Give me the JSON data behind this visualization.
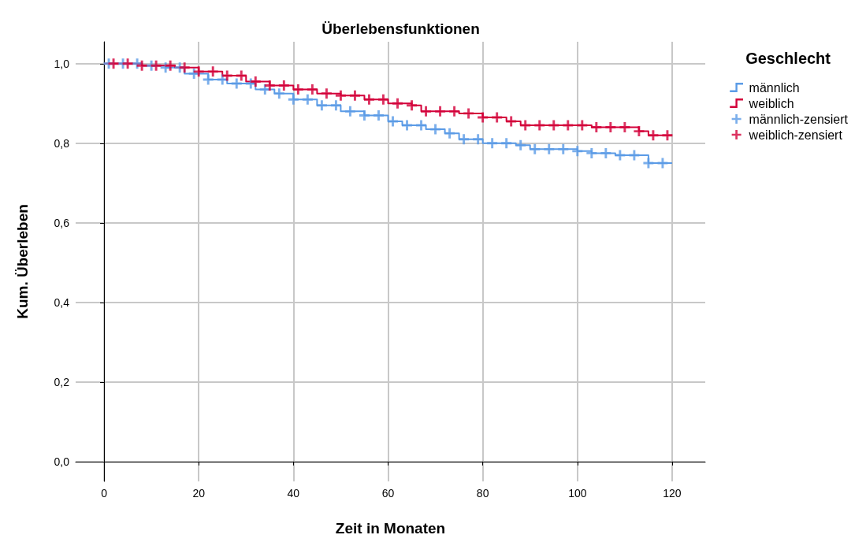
{
  "chart_data": {
    "type": "step",
    "title": "Überlebensfunktionen",
    "xlabel": "Zeit in Monaten",
    "ylabel": "Kum. Überleben",
    "legend_title": "Geschlecht",
    "legend": "top right",
    "grid": true,
    "xlim": [
      -6,
      127
    ],
    "xticks": [
      0,
      20,
      40,
      60,
      80,
      100,
      120
    ],
    "ylim": [
      -0.05,
      1.055
    ],
    "yticks": [
      {
        "value": 0,
        "label": "0,0"
      },
      {
        "value": 0.2,
        "label": "0,2"
      },
      {
        "value": 0.4,
        "label": "0,4"
      },
      {
        "value": 0.6,
        "label": "0,6"
      },
      {
        "value": 0.8,
        "label": "0,8"
      },
      {
        "value": 1,
        "label": "1,0"
      }
    ],
    "series": [
      {
        "name": "männlich",
        "color": "#5b9be6",
        "x": [
          0,
          8,
          13,
          17,
          22,
          26,
          32,
          36,
          40,
          45,
          50,
          55,
          60,
          63,
          68,
          72,
          75,
          80,
          87,
          90,
          100,
          103,
          108,
          115,
          120
        ],
        "values": [
          1.0,
          0.995,
          0.99,
          0.975,
          0.96,
          0.95,
          0.935,
          0.925,
          0.91,
          0.895,
          0.88,
          0.87,
          0.855,
          0.845,
          0.835,
          0.825,
          0.81,
          0.8,
          0.795,
          0.785,
          0.78,
          0.775,
          0.77,
          0.75,
          0.75
        ]
      },
      {
        "name": "weiblich",
        "color": "#d3003a",
        "x": [
          0,
          8,
          15,
          20,
          25,
          30,
          35,
          40,
          45,
          50,
          55,
          60,
          65,
          67,
          75,
          80,
          85,
          88,
          103,
          113,
          115,
          120
        ],
        "values": [
          1.0,
          0.995,
          0.99,
          0.98,
          0.97,
          0.955,
          0.945,
          0.935,
          0.925,
          0.92,
          0.91,
          0.9,
          0.895,
          0.88,
          0.875,
          0.865,
          0.855,
          0.845,
          0.84,
          0.83,
          0.82,
          0.82
        ]
      },
      {
        "name": "männlich-zensiert",
        "type": "scatter",
        "marker": "cross",
        "color": "#5b9be6",
        "x": [
          1,
          4,
          7,
          10,
          13,
          16,
          19,
          22,
          25,
          28,
          31,
          34,
          37,
          40,
          43,
          46,
          49,
          52,
          55,
          58,
          61,
          64,
          67,
          70,
          73,
          76,
          79,
          82,
          85,
          88,
          91,
          94,
          97,
          100,
          103,
          106,
          109,
          112,
          115,
          118
        ],
        "values": [
          1.0,
          1.0,
          1.0,
          0.995,
          0.99,
          0.99,
          0.975,
          0.96,
          0.96,
          0.95,
          0.95,
          0.935,
          0.925,
          0.91,
          0.91,
          0.895,
          0.895,
          0.88,
          0.87,
          0.87,
          0.855,
          0.845,
          0.845,
          0.835,
          0.825,
          0.81,
          0.81,
          0.8,
          0.8,
          0.795,
          0.785,
          0.785,
          0.785,
          0.78,
          0.775,
          0.775,
          0.77,
          0.77,
          0.75,
          0.75
        ]
      },
      {
        "name": "weiblich-zensiert",
        "type": "scatter",
        "marker": "cross",
        "color": "#d3003a",
        "x": [
          2,
          5,
          8,
          11,
          14,
          17,
          20,
          23,
          26,
          29,
          32,
          35,
          38,
          41,
          44,
          47,
          50,
          53,
          56,
          59,
          62,
          65,
          68,
          71,
          74,
          77,
          80,
          83,
          86,
          89,
          92,
          95,
          98,
          101,
          104,
          107,
          110,
          113,
          116,
          119
        ],
        "values": [
          1.0,
          1.0,
          0.995,
          0.995,
          0.995,
          0.99,
          0.98,
          0.98,
          0.97,
          0.97,
          0.955,
          0.945,
          0.945,
          0.935,
          0.935,
          0.925,
          0.92,
          0.92,
          0.91,
          0.91,
          0.9,
          0.895,
          0.88,
          0.88,
          0.88,
          0.875,
          0.865,
          0.865,
          0.855,
          0.845,
          0.845,
          0.845,
          0.845,
          0.845,
          0.84,
          0.84,
          0.84,
          0.83,
          0.82,
          0.82
        ]
      }
    ]
  }
}
